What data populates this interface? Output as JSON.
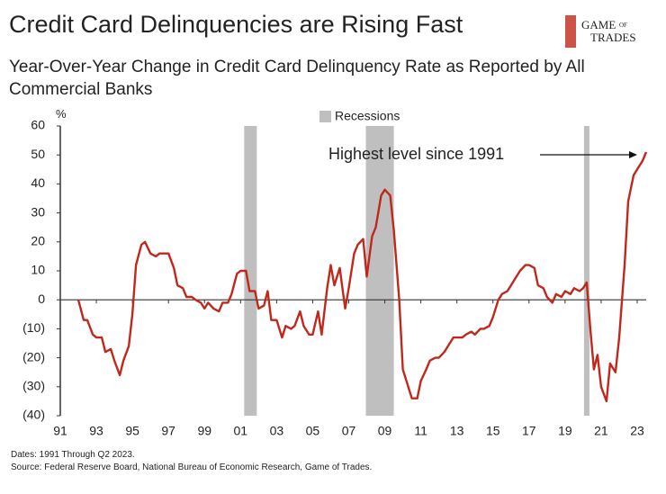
{
  "chart_data": {
    "type": "line",
    "title": "Credit Card Delinquencies are Rising Fast",
    "subtitle": "Year-Over-Year Change in Credit Card Delinquency Rate as Reported by All Commercial Banks",
    "y_unit": "%",
    "logo": [
      "GAME",
      "OF",
      "TRADES"
    ],
    "annotation": "Highest level since 1991",
    "recession_label": "Recessions",
    "recession_color": "#bfbfbf",
    "recessions": [
      [
        2001.2,
        2001.9
      ],
      [
        2007.95,
        2009.5
      ],
      [
        2020.05,
        2020.35
      ]
    ],
    "notes": [
      "Dates: 1991 Through Q2 2023.",
      "Source: Federal Reserve Board, National Bureau of Economic Research, Game of Trades."
    ],
    "xlim": [
      1991,
      2023.5
    ],
    "ylim": [
      -40,
      60
    ],
    "xticks": [
      {
        "value": 1991,
        "label": "91"
      },
      {
        "value": 1993,
        "label": "93"
      },
      {
        "value": 1995,
        "label": "95"
      },
      {
        "value": 1997,
        "label": "97"
      },
      {
        "value": 1999,
        "label": "99"
      },
      {
        "value": 2001,
        "label": "01"
      },
      {
        "value": 2003,
        "label": "03"
      },
      {
        "value": 2005,
        "label": "05"
      },
      {
        "value": 2007,
        "label": "07"
      },
      {
        "value": 2009,
        "label": "09"
      },
      {
        "value": 2011,
        "label": "11"
      },
      {
        "value": 2013,
        "label": "13"
      },
      {
        "value": 2015,
        "label": "15"
      },
      {
        "value": 2017,
        "label": "17"
      },
      {
        "value": 2019,
        "label": "19"
      },
      {
        "value": 2021,
        "label": "21"
      },
      {
        "value": 2023,
        "label": "23"
      }
    ],
    "yticks": [
      60,
      50,
      40,
      30,
      20,
      10,
      0,
      {
        "value": -10,
        "label": "(10)"
      },
      {
        "value": -20,
        "label": "(20)"
      },
      {
        "value": -30,
        "label": "(30)"
      },
      {
        "value": -40,
        "label": "(40)"
      }
    ],
    "x": [
      1992.0,
      1992.3,
      1992.5,
      1992.8,
      1993.0,
      1993.3,
      1993.5,
      1993.8,
      1994.0,
      1994.3,
      1994.5,
      1994.8,
      1995.0,
      1995.2,
      1995.5,
      1995.7,
      1996.0,
      1996.3,
      1996.5,
      1997.0,
      1997.3,
      1997.5,
      1997.8,
      1998.0,
      1998.3,
      1998.5,
      1998.8,
      1999.0,
      1999.2,
      1999.5,
      1999.8,
      2000.0,
      2000.3,
      2000.5,
      2000.8,
      2001.0,
      2001.3,
      2001.5,
      2001.8,
      2002.0,
      2002.3,
      2002.5,
      2002.7,
      2003.0,
      2003.3,
      2003.5,
      2003.8,
      2004.0,
      2004.3,
      2004.5,
      2004.8,
      2005.0,
      2005.3,
      2005.5,
      2005.8,
      2006.0,
      2006.2,
      2006.5,
      2006.8,
      2007.0,
      2007.3,
      2007.5,
      2007.8,
      2008.0,
      2008.3,
      2008.5,
      2008.8,
      2009.0,
      2009.3,
      2009.5,
      2009.8,
      2010.0,
      2010.3,
      2010.5,
      2010.8,
      2011.0,
      2011.3,
      2011.5,
      2011.8,
      2012.0,
      2012.3,
      2012.5,
      2012.8,
      2013.0,
      2013.3,
      2013.5,
      2013.8,
      2014.0,
      2014.3,
      2014.5,
      2014.8,
      2015.0,
      2015.3,
      2015.5,
      2015.8,
      2016.0,
      2016.3,
      2016.5,
      2016.8,
      2017.0,
      2017.3,
      2017.5,
      2017.8,
      2018.0,
      2018.3,
      2018.5,
      2018.8,
      2019.0,
      2019.3,
      2019.5,
      2019.8,
      2020.0,
      2020.2,
      2020.4,
      2020.6,
      2020.8,
      2021.0,
      2021.3,
      2021.5,
      2021.8,
      2022.0,
      2022.3,
      2022.5,
      2022.8,
      2023.0,
      2023.3,
      2023.5
    ],
    "series": [
      {
        "name": "Delinquency rate YoY change",
        "color": "#c0281c",
        "values": [
          0,
          -7,
          -7,
          -12,
          -13,
          -13,
          -18,
          -17,
          -21,
          -26,
          -21,
          -16,
          -5,
          12,
          19,
          20,
          16,
          15,
          16,
          16,
          11,
          5,
          4,
          1,
          1,
          0,
          -1,
          -3,
          -1,
          -3,
          -4,
          -1,
          -1,
          2,
          9,
          10,
          10,
          3,
          3,
          -3,
          -2,
          3,
          -7,
          -7,
          -13,
          -9,
          -10,
          -9,
          -4,
          -9,
          -12,
          -12,
          -4,
          -12,
          4,
          12,
          5,
          11,
          -3,
          4,
          16,
          19,
          21,
          8,
          22,
          25,
          36,
          38,
          36,
          24,
          0,
          -24,
          -30,
          -34,
          -34,
          -28,
          -24,
          -21,
          -20,
          -20,
          -18,
          -16,
          -13,
          -13,
          -13,
          -12,
          -11,
          -12,
          -10,
          -10,
          -9,
          -6,
          0,
          2,
          3,
          5,
          8,
          10,
          12,
          12,
          11,
          5,
          4,
          1,
          -1,
          2,
          1,
          3,
          2,
          4,
          3,
          4,
          6,
          -10,
          -24,
          -19,
          -30,
          -35,
          -22,
          -25,
          -13,
          12,
          34,
          43,
          45,
          48,
          51
        ]
      }
    ]
  }
}
